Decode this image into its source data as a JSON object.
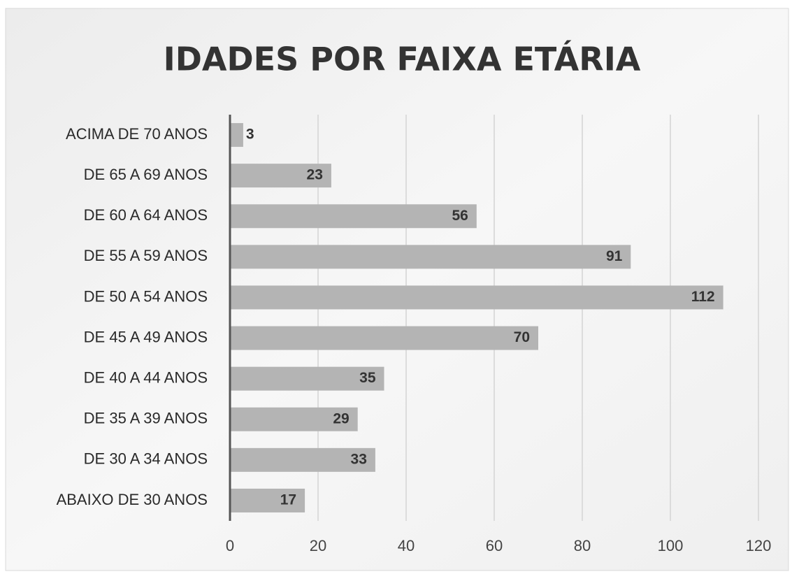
{
  "chart_data": {
    "type": "bar",
    "orientation": "horizontal",
    "title": "IDADES POR FAIXA ETÁRIA",
    "categories": [
      "ACIMA DE 70 ANOS",
      "DE 65 A 69 ANOS",
      "DE 60 A 64 ANOS",
      "DE 55 A 59 ANOS",
      "DE 50 A 54 ANOS",
      "DE 45 A 49 ANOS",
      "DE 40 A 44 ANOS",
      "DE 35 A 39 ANOS",
      "DE 30 A 34 ANOS",
      "ABAIXO DE 30 ANOS"
    ],
    "values": [
      3,
      23,
      56,
      91,
      112,
      70,
      35,
      29,
      33,
      17
    ],
    "color": "#b4b4b4",
    "xlim": [
      0,
      120
    ],
    "xticks": [
      0,
      20,
      40,
      60,
      80,
      100,
      120
    ],
    "grid": true
  }
}
